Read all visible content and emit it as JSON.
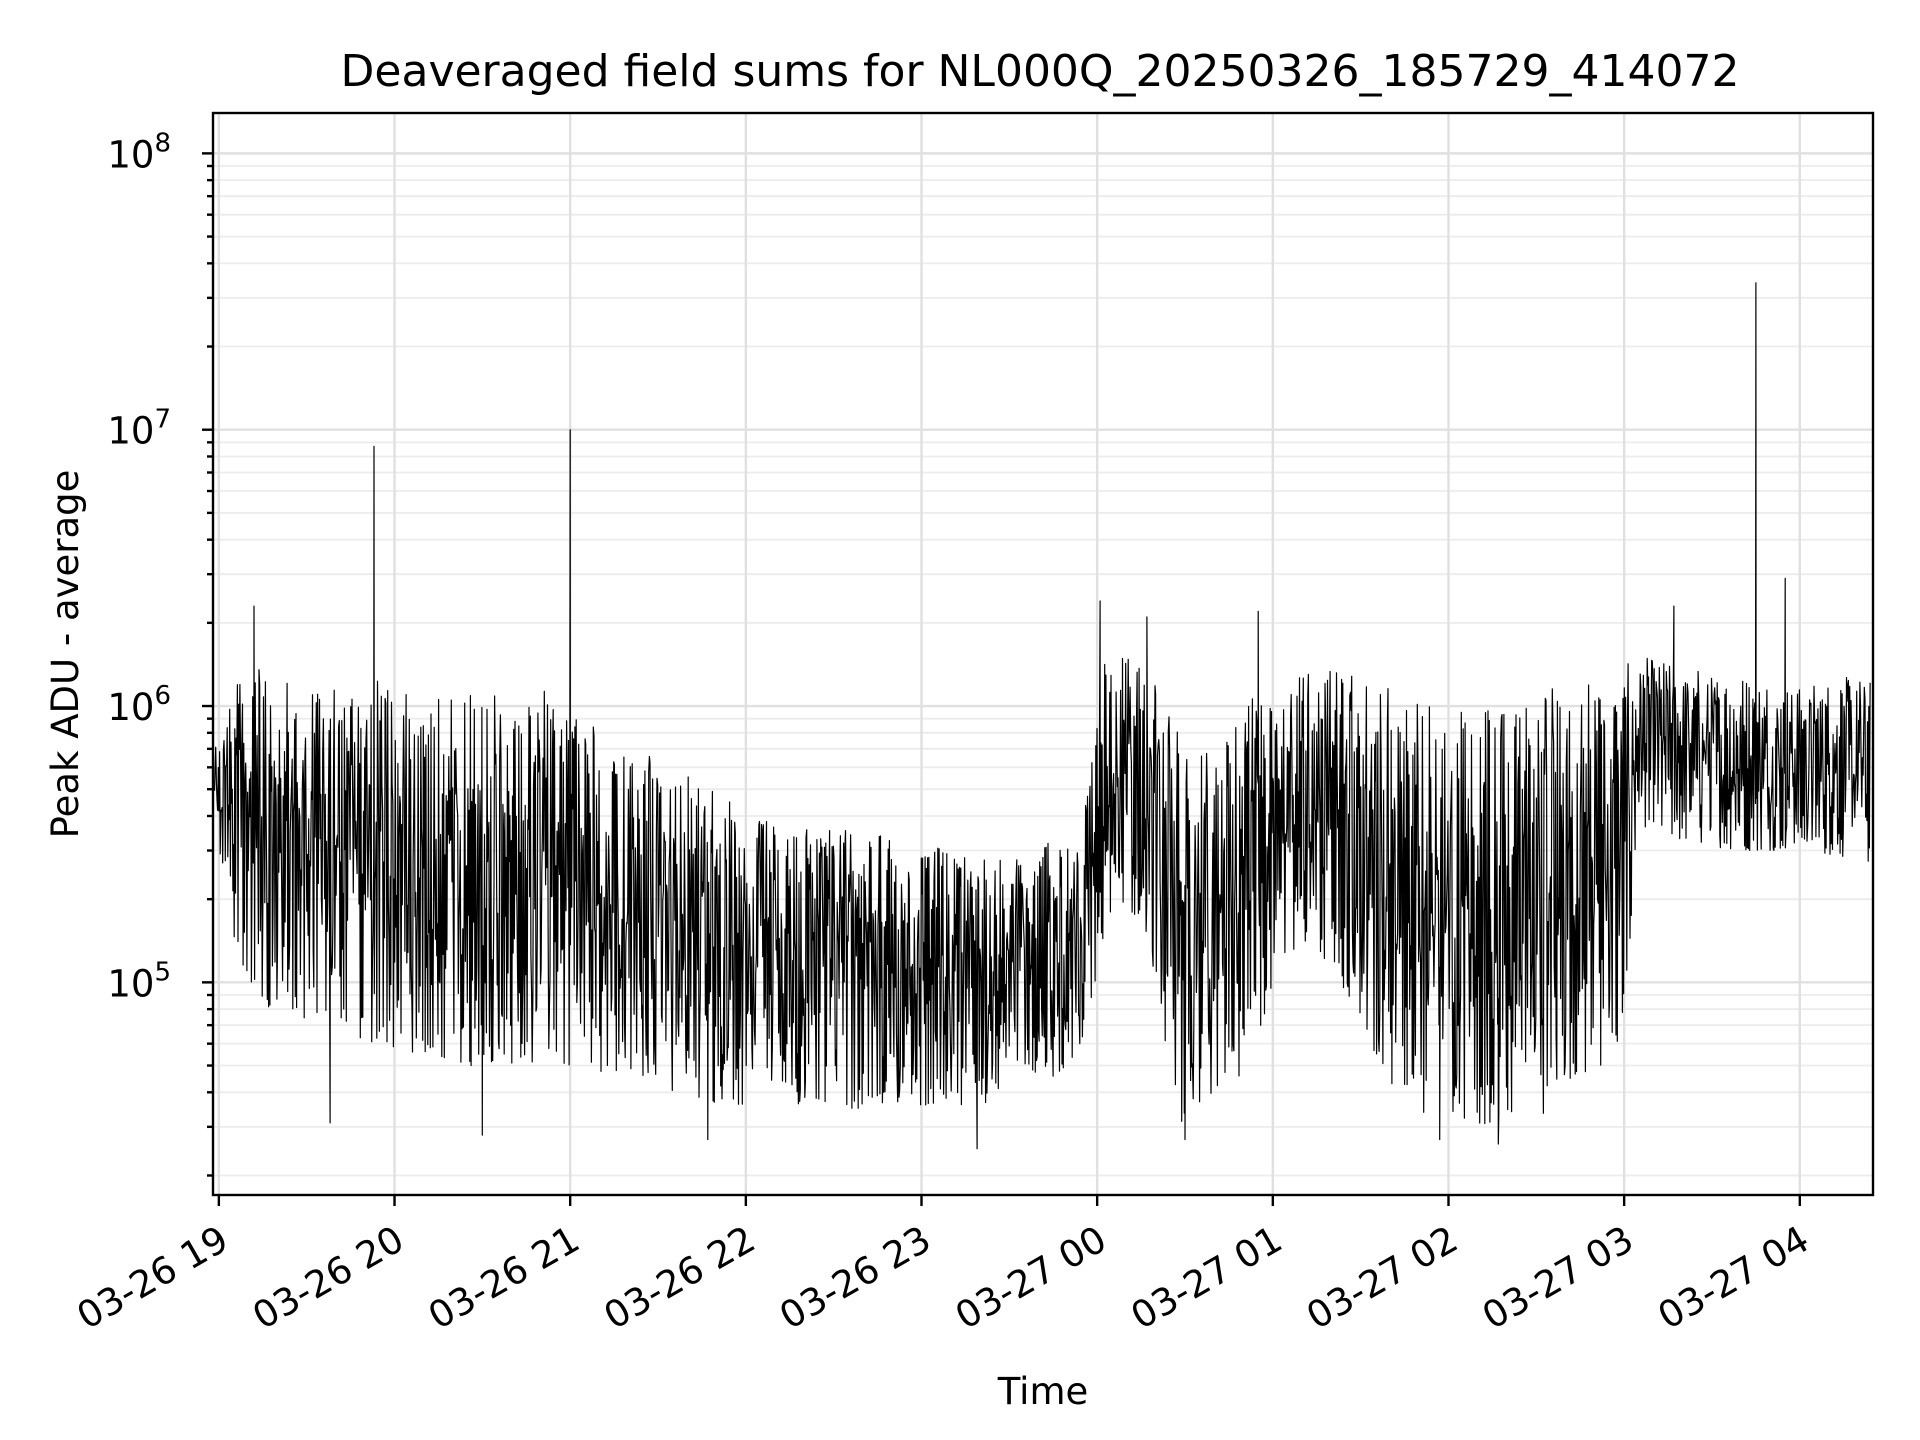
{
  "chart_data": {
    "type": "line",
    "title": "Deaveraged field sums for NL000Q_20250326_185729_414072",
    "xlabel": "Time",
    "ylabel": "Peak ADU - average",
    "yscale": "log",
    "grid": "both",
    "xlim": [
      "2025-03-26T18:58:00",
      "2025-03-27T04:25:00"
    ],
    "ylim": [
      17000,
      140000000
    ],
    "x_ticks": [
      {
        "t": "2025-03-26T19:00:00",
        "label": "03-26 19"
      },
      {
        "t": "2025-03-26T20:00:00",
        "label": "03-26 20"
      },
      {
        "t": "2025-03-26T21:00:00",
        "label": "03-26 21"
      },
      {
        "t": "2025-03-26T22:00:00",
        "label": "03-26 22"
      },
      {
        "t": "2025-03-26T23:00:00",
        "label": "03-26 23"
      },
      {
        "t": "2025-03-27T00:00:00",
        "label": "03-27 00"
      },
      {
        "t": "2025-03-27T01:00:00",
        "label": "03-27 01"
      },
      {
        "t": "2025-03-27T02:00:00",
        "label": "03-27 02"
      },
      {
        "t": "2025-03-27T03:00:00",
        "label": "03-27 03"
      },
      {
        "t": "2025-03-27T04:00:00",
        "label": "03-27 04"
      }
    ],
    "y_ticks": [
      {
        "value": 100000,
        "base": "10",
        "exp": "5"
      },
      {
        "value": 1000000,
        "base": "10",
        "exp": "6"
      },
      {
        "value": 10000000,
        "base": "10",
        "exp": "7"
      },
      {
        "value": 100000000,
        "base": "10",
        "exp": "8"
      }
    ],
    "series": [
      {
        "x": [
          "2025-03-26T18:58:30",
          "2025-03-26T19:02:00",
          "2025-03-26T19:05:00",
          "2025-03-26T19:08:00",
          "2025-03-26T19:11:00",
          "2025-03-26T19:12:00",
          "2025-03-26T19:14:00",
          "2025-03-26T19:17:00",
          "2025-03-26T19:20:00",
          "2025-03-26T19:25:00",
          "2025-03-26T19:30:00",
          "2025-03-26T19:33:00",
          "2025-03-26T19:36:00",
          "2025-03-26T19:40:00",
          "2025-03-26T19:44:00",
          "2025-03-26T19:48:00",
          "2025-03-26T19:52:00",
          "2025-03-26T19:53:00",
          "2025-03-26T19:54:00",
          "2025-03-26T19:58:00",
          "2025-03-26T20:05:00",
          "2025-03-26T20:12:00",
          "2025-03-26T20:20:00",
          "2025-03-26T20:25:00",
          "2025-03-26T20:30:00",
          "2025-03-26T20:35:00",
          "2025-03-26T20:42:00",
          "2025-03-26T20:50:00",
          "2025-03-26T20:57:00",
          "2025-03-26T20:59:30",
          "2025-03-26T21:00:00",
          "2025-03-26T21:00:30",
          "2025-03-26T21:05:00",
          "2025-03-26T21:15:00",
          "2025-03-26T21:25:00",
          "2025-03-26T21:35:00",
          "2025-03-26T21:45:00",
          "2025-03-26T21:52:00",
          "2025-03-26T22:00:00",
          "2025-03-26T22:10:00",
          "2025-03-26T22:20:00",
          "2025-03-26T22:30:00",
          "2025-03-26T22:40:00",
          "2025-03-26T22:50:00",
          "2025-03-26T23:00:00",
          "2025-03-26T23:10:00",
          "2025-03-26T23:20:00",
          "2025-03-26T23:30:00",
          "2025-03-26T23:40:00",
          "2025-03-26T23:50:00",
          "2025-03-26T23:55:00",
          "2025-03-27T00:02:00",
          "2025-03-27T00:08:00",
          "2025-03-27T00:15:00",
          "2025-03-27T00:22:00",
          "2025-03-27T00:28:00",
          "2025-03-27T00:32:00",
          "2025-03-27T00:40:00",
          "2025-03-27T00:48:00",
          "2025-03-27T00:55:00",
          "2025-03-27T01:02:00",
          "2025-03-27T01:10:00",
          "2025-03-27T01:20:00",
          "2025-03-27T01:30:00",
          "2025-03-27T01:35:00",
          "2025-03-27T01:40:00",
          "2025-03-27T01:45:00",
          "2025-03-27T01:50:00",
          "2025-03-27T02:00:00",
          "2025-03-27T02:10:00",
          "2025-03-27T02:20:00",
          "2025-03-27T02:30:00",
          "2025-03-27T02:40:00",
          "2025-03-27T02:50:00",
          "2025-03-27T03:00:00",
          "2025-03-27T03:05:00",
          "2025-03-27T03:08:00",
          "2025-03-27T03:12:00",
          "2025-03-27T03:20:00",
          "2025-03-27T03:30:00",
          "2025-03-27T03:40:00",
          "2025-03-27T03:44:30",
          "2025-03-27T03:45:00",
          "2025-03-27T03:45:30",
          "2025-03-27T03:50:00",
          "2025-03-27T04:00:00",
          "2025-03-27T04:10:00",
          "2025-03-27T04:20:00",
          "2025-03-27T04:24:00"
        ],
        "lo": [
          400000,
          220000,
          150000,
          110000,
          90000,
          95000,
          85000,
          80000,
          78000,
          75000,
          72000,
          70000,
          75000,
          70000,
          66000,
          62000,
          60000,
          60000,
          58000,
          56000,
          55000,
          54000,
          52000,
          50000,
          50000,
          52000,
          50000,
          50000,
          48000,
          50000,
          50000,
          50000,
          48000,
          46000,
          44000,
          40000,
          38000,
          36000,
          36000,
          36000,
          35000,
          35000,
          35000,
          36000,
          36000,
          36000,
          36000,
          38000,
          42000,
          50000,
          60000,
          140000,
          200000,
          160000,
          70000,
          30000,
          35000,
          40000,
          45000,
          60000,
          120000,
          130000,
          110000,
          70000,
          55000,
          42000,
          38000,
          34000,
          32000,
          31000,
          30000,
          32000,
          38000,
          45000,
          60000,
          380000,
          360000,
          330000,
          320000,
          310000,
          300000,
          300000,
          300000,
          300000,
          300000,
          300000,
          290000,
          280000,
          270000
        ],
        "hi": [
          700000,
          950000,
          1300000,
          1400000,
          1400000,
          1400000,
          1350000,
          1300000,
          1250000,
          1200000,
          1200000,
          1200000,
          1150000,
          1200000,
          1100000,
          1200000,
          1300000,
          1300000,
          1300000,
          1200000,
          1200000,
          1200000,
          1150000,
          1100000,
          1100000,
          1100000,
          1100000,
          1150000,
          1100000,
          1100000,
          1100000,
          1100000,
          900000,
          800000,
          700000,
          600000,
          520000,
          480000,
          450000,
          400000,
          380000,
          370000,
          350000,
          340000,
          320000,
          300000,
          280000,
          280000,
          300000,
          380000,
          400000,
          1400000,
          1600000,
          1400000,
          1100000,
          800000,
          650000,
          700000,
          1000000,
          1100000,
          1100000,
          1300000,
          1350000,
          1350000,
          1300000,
          1200000,
          1150000,
          1100000,
          1100000,
          1100000,
          1050000,
          1100000,
          1200000,
          1350000,
          1400000,
          1500000,
          1500000,
          1500000,
          1400000,
          1350000,
          1300000,
          1300000,
          1300000,
          1300000,
          1250000,
          1200000,
          1250000,
          1300000,
          1250000
        ],
        "spikes": [
          {
            "t": "2025-03-26T19:12:00",
            "v": 2300000
          },
          {
            "t": "2025-03-26T19:53:00",
            "v": 8700000
          },
          {
            "t": "2025-03-26T21:00:00",
            "v": 10000000
          },
          {
            "t": "2025-03-27T00:01:00",
            "v": 2400000
          },
          {
            "t": "2025-03-27T00:17:00",
            "v": 2100000
          },
          {
            "t": "2025-03-27T00:55:00",
            "v": 2200000
          },
          {
            "t": "2025-03-27T03:17:00",
            "v": 2300000
          },
          {
            "t": "2025-03-27T03:45:00",
            "v": 34000000
          },
          {
            "t": "2025-03-27T03:55:00",
            "v": 2900000
          }
        ],
        "dips": [
          {
            "t": "2025-03-26T19:38:00",
            "v": 31000
          },
          {
            "t": "2025-03-26T20:30:00",
            "v": 28000
          },
          {
            "t": "2025-03-26T21:47:00",
            "v": 27000
          },
          {
            "t": "2025-03-26T23:19:00",
            "v": 25000
          },
          {
            "t": "2025-03-27T00:30:00",
            "v": 27000
          },
          {
            "t": "2025-03-27T01:57:00",
            "v": 27000
          },
          {
            "t": "2025-03-27T02:17:00",
            "v": 26000
          }
        ]
      }
    ]
  }
}
